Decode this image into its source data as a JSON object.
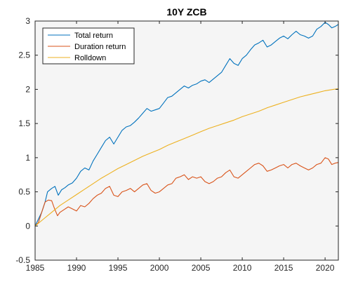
{
  "chart_data": {
    "type": "line",
    "title": "10Y ZCB",
    "xlabel": "",
    "ylabel": "",
    "xlim": [
      1985,
      2021.6
    ],
    "ylim": [
      -0.5,
      3
    ],
    "xticks": [
      1985,
      1990,
      1995,
      2000,
      2005,
      2010,
      2015,
      2020
    ],
    "yticks": [
      -0.5,
      0,
      0.5,
      1,
      1.5,
      2,
      2.5,
      3
    ],
    "xtick_labels": [
      "1985",
      "1990",
      "1995",
      "2000",
      "2005",
      "2010",
      "2015",
      "2020"
    ],
    "ytick_labels": [
      "-0.5",
      "0",
      "0.5",
      "1",
      "1.5",
      "2",
      "2.5",
      "3"
    ],
    "grid": false,
    "legend_position": "top-left",
    "plot_background": "#f5f5f5",
    "series": [
      {
        "name": "Total return",
        "color": "#0072BD",
        "points": [
          [
            1985,
            0.0
          ],
          [
            1985.4,
            0.1
          ],
          [
            1985.8,
            0.2
          ],
          [
            1986.2,
            0.35
          ],
          [
            1986.5,
            0.5
          ],
          [
            1987,
            0.55
          ],
          [
            1987.4,
            0.58
          ],
          [
            1987.8,
            0.45
          ],
          [
            1988.2,
            0.53
          ],
          [
            1988.6,
            0.56
          ],
          [
            1989,
            0.6
          ],
          [
            1989.5,
            0.63
          ],
          [
            1990,
            0.7
          ],
          [
            1990.5,
            0.8
          ],
          [
            1991,
            0.85
          ],
          [
            1991.5,
            0.82
          ],
          [
            1992,
            0.95
          ],
          [
            1992.5,
            1.05
          ],
          [
            1993,
            1.15
          ],
          [
            1993.5,
            1.25
          ],
          [
            1994,
            1.3
          ],
          [
            1994.5,
            1.2
          ],
          [
            1995,
            1.3
          ],
          [
            1995.5,
            1.4
          ],
          [
            1996,
            1.45
          ],
          [
            1996.5,
            1.47
          ],
          [
            1997,
            1.52
          ],
          [
            1997.5,
            1.58
          ],
          [
            1998,
            1.65
          ],
          [
            1998.5,
            1.72
          ],
          [
            1999,
            1.68
          ],
          [
            1999.5,
            1.7
          ],
          [
            2000,
            1.72
          ],
          [
            2000.5,
            1.8
          ],
          [
            2001,
            1.88
          ],
          [
            2001.5,
            1.9
          ],
          [
            2002,
            1.95
          ],
          [
            2002.5,
            2.0
          ],
          [
            2003,
            2.05
          ],
          [
            2003.5,
            2.02
          ],
          [
            2004,
            2.06
          ],
          [
            2004.5,
            2.08
          ],
          [
            2005,
            2.12
          ],
          [
            2005.5,
            2.14
          ],
          [
            2006,
            2.1
          ],
          [
            2006.5,
            2.15
          ],
          [
            2007,
            2.2
          ],
          [
            2007.5,
            2.25
          ],
          [
            2008,
            2.35
          ],
          [
            2008.5,
            2.45
          ],
          [
            2009,
            2.38
          ],
          [
            2009.5,
            2.35
          ],
          [
            2010,
            2.45
          ],
          [
            2010.5,
            2.5
          ],
          [
            2011,
            2.58
          ],
          [
            2011.5,
            2.65
          ],
          [
            2012,
            2.68
          ],
          [
            2012.5,
            2.72
          ],
          [
            2013,
            2.62
          ],
          [
            2013.5,
            2.65
          ],
          [
            2014,
            2.7
          ],
          [
            2014.5,
            2.75
          ],
          [
            2015,
            2.78
          ],
          [
            2015.5,
            2.74
          ],
          [
            2016,
            2.8
          ],
          [
            2016.5,
            2.85
          ],
          [
            2017,
            2.8
          ],
          [
            2017.5,
            2.78
          ],
          [
            2018,
            2.75
          ],
          [
            2018.5,
            2.78
          ],
          [
            2019,
            2.88
          ],
          [
            2019.5,
            2.92
          ],
          [
            2020,
            2.98
          ],
          [
            2020.4,
            2.95
          ],
          [
            2020.8,
            2.9
          ],
          [
            2021.2,
            2.92
          ],
          [
            2021.6,
            2.95
          ]
        ]
      },
      {
        "name": "Duration return",
        "color": "#D95319",
        "points": [
          [
            1985,
            0.0
          ],
          [
            1985.4,
            0.05
          ],
          [
            1985.8,
            0.2
          ],
          [
            1986.2,
            0.35
          ],
          [
            1986.6,
            0.38
          ],
          [
            1987,
            0.37
          ],
          [
            1987.3,
            0.27
          ],
          [
            1987.7,
            0.15
          ],
          [
            1988,
            0.2
          ],
          [
            1988.5,
            0.24
          ],
          [
            1989,
            0.28
          ],
          [
            1989.5,
            0.25
          ],
          [
            1990,
            0.22
          ],
          [
            1990.5,
            0.3
          ],
          [
            1991,
            0.28
          ],
          [
            1991.5,
            0.33
          ],
          [
            1992,
            0.4
          ],
          [
            1992.5,
            0.45
          ],
          [
            1993,
            0.48
          ],
          [
            1993.5,
            0.55
          ],
          [
            1994,
            0.58
          ],
          [
            1994.5,
            0.45
          ],
          [
            1995,
            0.43
          ],
          [
            1995.5,
            0.5
          ],
          [
            1996,
            0.52
          ],
          [
            1996.5,
            0.55
          ],
          [
            1997,
            0.5
          ],
          [
            1997.5,
            0.55
          ],
          [
            1998,
            0.6
          ],
          [
            1998.5,
            0.62
          ],
          [
            1999,
            0.52
          ],
          [
            1999.5,
            0.48
          ],
          [
            2000,
            0.5
          ],
          [
            2000.5,
            0.55
          ],
          [
            2001,
            0.6
          ],
          [
            2001.5,
            0.62
          ],
          [
            2002,
            0.7
          ],
          [
            2002.5,
            0.72
          ],
          [
            2003,
            0.75
          ],
          [
            2003.5,
            0.68
          ],
          [
            2004,
            0.72
          ],
          [
            2004.5,
            0.7
          ],
          [
            2005,
            0.72
          ],
          [
            2005.5,
            0.65
          ],
          [
            2006,
            0.62
          ],
          [
            2006.5,
            0.65
          ],
          [
            2007,
            0.7
          ],
          [
            2007.5,
            0.72
          ],
          [
            2008,
            0.78
          ],
          [
            2008.5,
            0.82
          ],
          [
            2009,
            0.72
          ],
          [
            2009.5,
            0.7
          ],
          [
            2010,
            0.75
          ],
          [
            2010.5,
            0.8
          ],
          [
            2011,
            0.85
          ],
          [
            2011.5,
            0.9
          ],
          [
            2012,
            0.92
          ],
          [
            2012.5,
            0.88
          ],
          [
            2013,
            0.8
          ],
          [
            2013.5,
            0.82
          ],
          [
            2014,
            0.85
          ],
          [
            2014.5,
            0.88
          ],
          [
            2015,
            0.9
          ],
          [
            2015.5,
            0.85
          ],
          [
            2016,
            0.9
          ],
          [
            2016.5,
            0.92
          ],
          [
            2017,
            0.88
          ],
          [
            2017.5,
            0.85
          ],
          [
            2018,
            0.82
          ],
          [
            2018.5,
            0.85
          ],
          [
            2019,
            0.9
          ],
          [
            2019.5,
            0.92
          ],
          [
            2020,
            1.0
          ],
          [
            2020.4,
            0.98
          ],
          [
            2020.8,
            0.9
          ],
          [
            2021.2,
            0.92
          ],
          [
            2021.6,
            0.93
          ]
        ]
      },
      {
        "name": "Rolldown",
        "color": "#EDB120",
        "points": [
          [
            1985,
            0.0
          ],
          [
            1986,
            0.1
          ],
          [
            1987,
            0.2
          ],
          [
            1988,
            0.3
          ],
          [
            1989,
            0.38
          ],
          [
            1990,
            0.46
          ],
          [
            1991,
            0.54
          ],
          [
            1992,
            0.62
          ],
          [
            1993,
            0.7
          ],
          [
            1994,
            0.77
          ],
          [
            1995,
            0.84
          ],
          [
            1996,
            0.9
          ],
          [
            1997,
            0.96
          ],
          [
            1998,
            1.02
          ],
          [
            1999,
            1.07
          ],
          [
            2000,
            1.12
          ],
          [
            2001,
            1.18
          ],
          [
            2002,
            1.23
          ],
          [
            2003,
            1.28
          ],
          [
            2004,
            1.33
          ],
          [
            2005,
            1.38
          ],
          [
            2006,
            1.43
          ],
          [
            2007,
            1.47
          ],
          [
            2008,
            1.51
          ],
          [
            2009,
            1.55
          ],
          [
            2010,
            1.6
          ],
          [
            2011,
            1.64
          ],
          [
            2012,
            1.68
          ],
          [
            2013,
            1.73
          ],
          [
            2014,
            1.77
          ],
          [
            2015,
            1.81
          ],
          [
            2016,
            1.85
          ],
          [
            2017,
            1.89
          ],
          [
            2018,
            1.92
          ],
          [
            2019,
            1.95
          ],
          [
            2020,
            1.98
          ],
          [
            2021,
            2.0
          ],
          [
            2021.6,
            2.01
          ]
        ]
      }
    ]
  }
}
